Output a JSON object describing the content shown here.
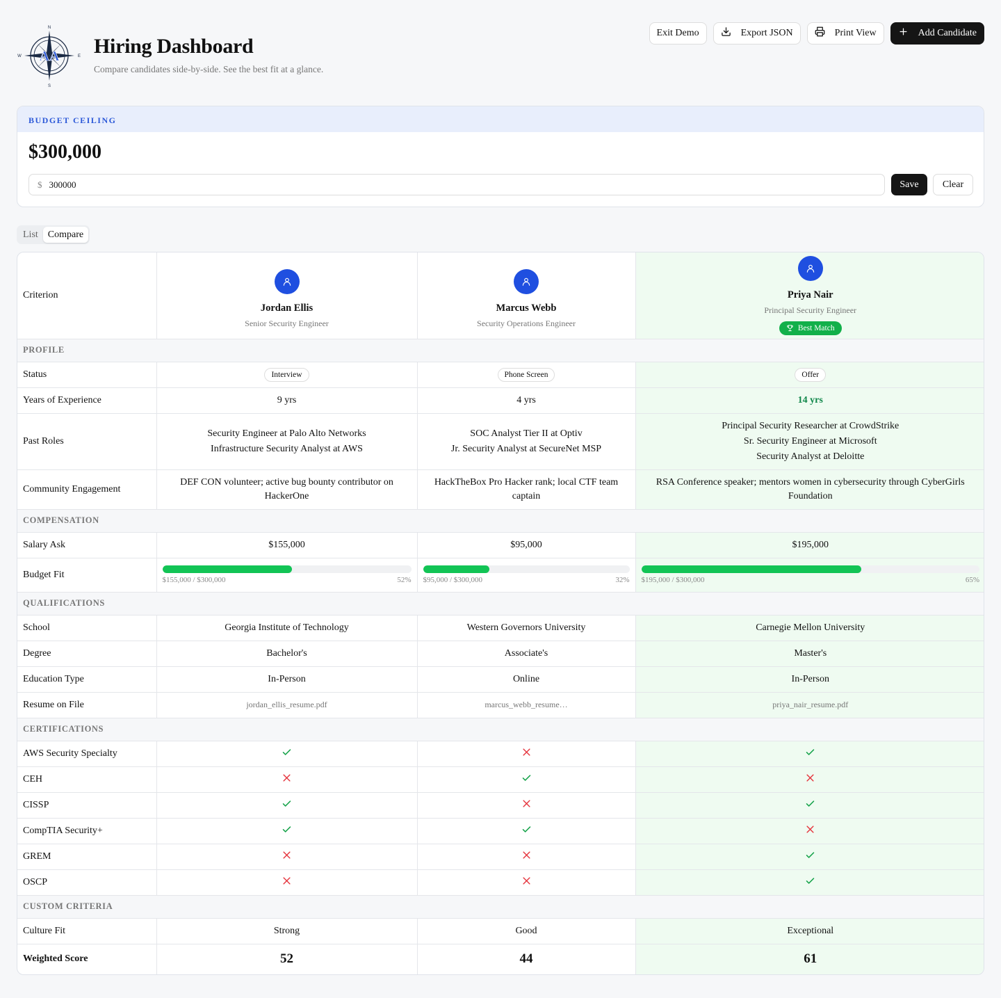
{
  "header": {
    "title": "Hiring Dashboard",
    "subtitle": "Compare candidates side-by-side. See the best fit at a glance.",
    "logo_letters": "AA",
    "logo_compass": [
      "N",
      "E",
      "S",
      "W"
    ],
    "actions": [
      {
        "label": "Exit Demo",
        "icon": ""
      },
      {
        "label": "Export JSON",
        "icon": "download-icon"
      },
      {
        "label": "Print View",
        "icon": "printer-icon"
      },
      {
        "label": "Add Candidate",
        "icon": "plus-icon"
      }
    ]
  },
  "budget": {
    "heading": "BUDGET CEILING",
    "value_display": "$300,000",
    "currency_symbol": "$",
    "input_value": "300000",
    "save_label": "Save",
    "clear_label": "Clear"
  },
  "view_tabs": [
    "List",
    "Compare"
  ],
  "active_tab": "Compare",
  "table": {
    "criterion_header": "Criterion",
    "candidates": [
      {
        "name": "Jordan Ellis",
        "role": "Senior Security Engineer",
        "best": false
      },
      {
        "name": "Marcus Webb",
        "role": "Security Operations Engineer",
        "best": false
      },
      {
        "name": "Priya Nair",
        "role": "Principal Security Engineer",
        "best": true,
        "badge": "Best Match"
      }
    ],
    "sections": {
      "profile": "PROFILE",
      "compensation": "COMPENSATION",
      "qualifications": "QUALIFICATIONS",
      "certifications": "CERTIFICATIONS",
      "custom": "CUSTOM CRITERIA"
    },
    "rows": {
      "status": {
        "label": "Status",
        "values": [
          "Interview",
          "Phone Screen",
          "Offer"
        ]
      },
      "experience": {
        "label": "Years of Experience",
        "values": [
          "9 yrs",
          "4 yrs",
          "14 yrs"
        ]
      },
      "past_roles": {
        "label": "Past Roles",
        "values": [
          [
            "Security Engineer at Palo Alto Networks",
            "Infrastructure Security Analyst at AWS"
          ],
          [
            "SOC Analyst Tier II at Optiv",
            "Jr. Security Analyst at SecureNet MSP"
          ],
          [
            "Principal Security Researcher at CrowdStrike",
            "Sr. Security Engineer at Microsoft",
            "Security Analyst at Deloitte"
          ]
        ]
      },
      "community": {
        "label": "Community Engagement",
        "values": [
          "DEF CON volunteer; active bug bounty contributor on HackerOne",
          "HackTheBox Pro Hacker rank; local CTF team captain",
          "RSA Conference speaker; mentors women in cybersecurity through CyberGirls Foundation"
        ]
      },
      "salary": {
        "label": "Salary Ask",
        "values": [
          "$155,000",
          "$95,000",
          "$195,000"
        ]
      },
      "budget_fit": {
        "label": "Budget Fit",
        "values": [
          {
            "text": "$155,000 / $300,000",
            "percent_label": "52%",
            "fraction": 0.52
          },
          {
            "text": "$95,000 / $300,000",
            "percent_label": "32%",
            "fraction": 0.32
          },
          {
            "text": "$195,000 / $300,000",
            "percent_label": "65%",
            "fraction": 0.65
          }
        ]
      },
      "school": {
        "label": "School",
        "values": [
          "Georgia Institute of Technology",
          "Western Governors University",
          "Carnegie Mellon University"
        ]
      },
      "degree": {
        "label": "Degree",
        "values": [
          "Bachelor's",
          "Associate's",
          "Master's"
        ]
      },
      "education_type": {
        "label": "Education Type",
        "values": [
          "In-Person",
          "Online",
          "In-Person"
        ]
      },
      "resume": {
        "label": "Resume on File",
        "values": [
          "jordan_ellis_resume.pdf",
          "marcus_webb_resume…",
          "priya_nair_resume.pdf"
        ]
      },
      "certs": [
        {
          "label": "AWS Security Specialty",
          "values": [
            true,
            false,
            true
          ]
        },
        {
          "label": "CEH",
          "values": [
            false,
            true,
            false
          ]
        },
        {
          "label": "CISSP",
          "values": [
            true,
            false,
            true
          ]
        },
        {
          "label": "CompTIA Security+",
          "values": [
            true,
            true,
            false
          ]
        },
        {
          "label": "GREM",
          "values": [
            false,
            false,
            true
          ]
        },
        {
          "label": "OSCP",
          "values": [
            false,
            false,
            true
          ]
        }
      ],
      "culture": {
        "label": "Culture Fit",
        "values": [
          "Strong",
          "Good",
          "Exceptional"
        ]
      },
      "weighted": {
        "label": "Weighted Score",
        "values": [
          "52",
          "44",
          "61"
        ]
      }
    }
  },
  "colors": {
    "accent_blue": "#1f4fe0",
    "best_green": "#12b04a",
    "bar_green": "#12c455",
    "best_bg": "#effbf1",
    "check_green": "#16a34a",
    "cross_red": "#e5323b"
  }
}
